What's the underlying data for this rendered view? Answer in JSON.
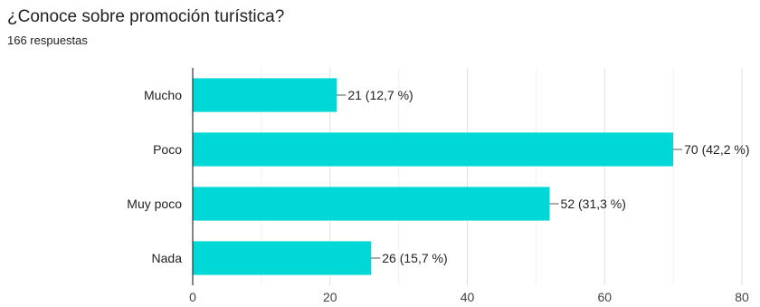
{
  "header": {
    "title": "¿Conoce sobre promoción turística?",
    "responses": "166 respuestas"
  },
  "chart_data": {
    "type": "bar",
    "orientation": "horizontal",
    "categories": [
      "Mucho",
      "Poco",
      "Muy poco",
      "Nada"
    ],
    "values": [
      21,
      70,
      52,
      26
    ],
    "data_labels": [
      "21 (12,7 %)",
      "70 (42,2 %)",
      "52 (31,3 %)",
      "26 (15,7 %)"
    ],
    "xlim": [
      0,
      80
    ],
    "xticks": [
      0,
      20,
      40,
      60,
      80
    ],
    "grid": true,
    "bar_color": "#00D8D8"
  }
}
